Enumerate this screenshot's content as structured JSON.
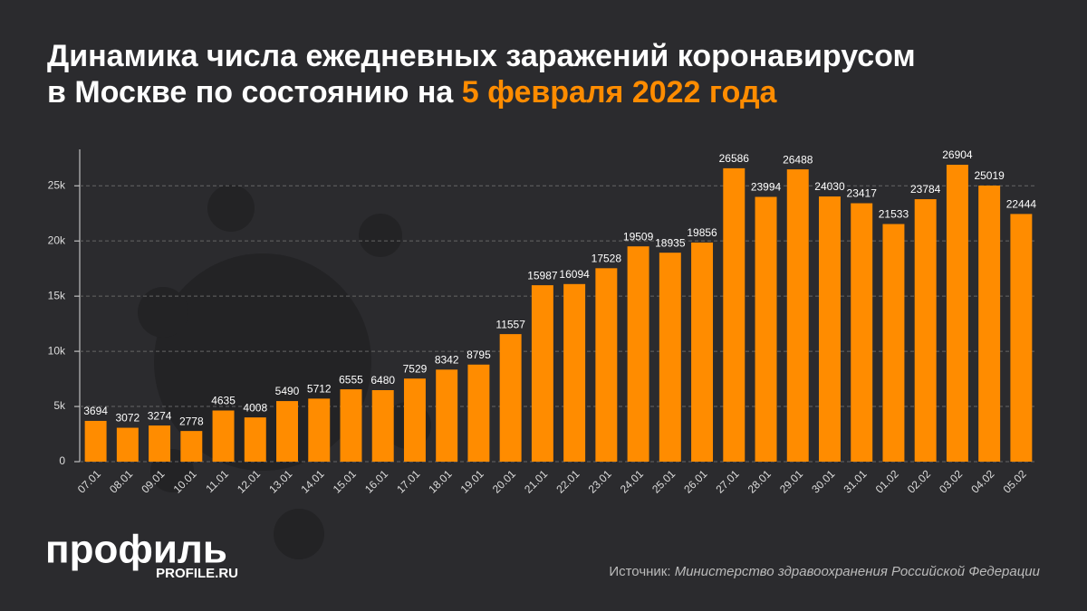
{
  "chart_data": {
    "type": "bar",
    "title": "Динамика числа ежедневных заражений коронавирусом в Москве по состоянию на",
    "title_highlight": "5 февраля 2022 года",
    "categories": [
      "07.01",
      "08.01",
      "09.01",
      "10.01",
      "11.01",
      "12.01",
      "13.01",
      "14.01",
      "15.01",
      "16.01",
      "17.01",
      "18.01",
      "19.01",
      "20.01",
      "21.01",
      "22.01",
      "23.01",
      "24.01",
      "25.01",
      "26.01",
      "27.01",
      "28.01",
      "29.01",
      "30.01",
      "31.01",
      "01.02",
      "02.02",
      "03.02",
      "04.02",
      "05.02"
    ],
    "values": [
      3694,
      3072,
      3274,
      2778,
      4635,
      4008,
      5490,
      5712,
      6555,
      6480,
      7529,
      8342,
      8795,
      11557,
      15987,
      16094,
      17528,
      19509,
      18935,
      19856,
      26586,
      23994,
      26488,
      24030,
      23417,
      21533,
      23784,
      26904,
      25019,
      22444
    ],
    "color": "#ff8c00",
    "ylim": [
      0,
      28300
    ],
    "yticks": [
      0,
      {
        "value": 5000,
        "label": "5k"
      },
      {
        "value": 10000,
        "label": "10k"
      },
      {
        "value": 15000,
        "label": "15k"
      },
      {
        "value": 20000,
        "label": "20k"
      },
      {
        "value": 25000,
        "label": "25k"
      }
    ],
    "grid": true
  },
  "logo": {
    "name": "профиль",
    "site": "PROFILE.RU"
  },
  "source_label": "Источник:",
  "source": "Министерство здравоохранения Российской Федерации"
}
